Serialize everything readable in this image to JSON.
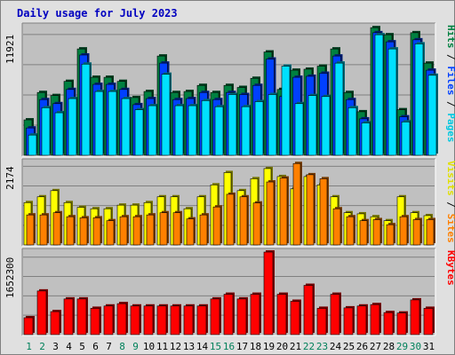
{
  "title": "Daily usage for July 2023",
  "chart_data": [
    {
      "type": "bar",
      "title": "Daily usage for July 2023",
      "categories": [
        "1",
        "2",
        "3",
        "4",
        "5",
        "6",
        "7",
        "8",
        "9",
        "10",
        "11",
        "12",
        "13",
        "14",
        "15",
        "16",
        "17",
        "18",
        "19",
        "20",
        "21",
        "22",
        "23",
        "24",
        "25",
        "26",
        "27",
        "28",
        "29",
        "30",
        "31"
      ],
      "weekend_days": [
        "1",
        "2",
        "8",
        "9",
        "15",
        "16",
        "22",
        "23",
        "29",
        "30"
      ],
      "y_tick": 11921,
      "ylim": [
        0,
        12700
      ],
      "axis_labels": [
        "Pages",
        "Files",
        "Hits"
      ],
      "series": [
        {
          "name": "Hits",
          "color": "#008040",
          "values": [
            3500,
            6200,
            5900,
            7300,
            10500,
            7700,
            7700,
            7300,
            5700,
            6300,
            9800,
            6200,
            6300,
            6900,
            6200,
            6900,
            6700,
            7600,
            10200,
            6500,
            8400,
            8500,
            8800,
            10500,
            6200,
            4300,
            12600,
            11900,
            4500,
            12100,
            9100
          ]
        },
        {
          "name": "Files",
          "color": "#0040ff",
          "values": [
            2700,
            5500,
            5100,
            6500,
            9900,
            7000,
            7000,
            6500,
            5000,
            5600,
            9100,
            5500,
            5600,
            6200,
            5500,
            6200,
            6000,
            6900,
            9500,
            5800,
            7700,
            7800,
            8100,
            9800,
            5500,
            3600,
            12100,
            11200,
            3800,
            11400,
            8400
          ]
        },
        {
          "name": "Pages",
          "color": "#00e0ff",
          "values": [
            2000,
            4700,
            4200,
            5600,
            9000,
            6300,
            6300,
            5600,
            4500,
            4900,
            8000,
            4900,
            4900,
            5400,
            4800,
            6000,
            4800,
            5300,
            6000,
            8800,
            5100,
            5900,
            5800,
            9100,
            4700,
            3200,
            11900,
            10500,
            3300,
            11000,
            7900
          ]
        }
      ]
    },
    {
      "type": "bar",
      "categories": [
        "1",
        "2",
        "3",
        "4",
        "5",
        "6",
        "7",
        "8",
        "9",
        "10",
        "11",
        "12",
        "13",
        "14",
        "15",
        "16",
        "17",
        "18",
        "19",
        "20",
        "21",
        "22",
        "23",
        "24",
        "25",
        "26",
        "27",
        "28",
        "29",
        "30",
        "31"
      ],
      "y_tick": 2174,
      "ylim": [
        0,
        2280
      ],
      "axis_labels": [
        "Sites",
        "Visits"
      ],
      "series": [
        {
          "name": "Visits",
          "color": "#ffff00",
          "values": [
            1170,
            1330,
            1500,
            1170,
            1040,
            1000,
            1000,
            1100,
            1100,
            1170,
            1330,
            1330,
            1000,
            1330,
            1660,
            2000,
            1500,
            1830,
            2110,
            1890,
            1550,
            1890,
            1660,
            1330,
            890,
            860,
            780,
            670,
            1330,
            890,
            810
          ]
        },
        {
          "name": "Sites",
          "color": "#ff8000",
          "values": [
            830,
            830,
            890,
            780,
            750,
            750,
            670,
            780,
            780,
            830,
            890,
            890,
            720,
            830,
            1050,
            1400,
            1330,
            1160,
            1740,
            1850,
            2250,
            1940,
            1830,
            1000,
            780,
            670,
            700,
            560,
            780,
            700,
            700
          ]
        }
      ]
    },
    {
      "type": "bar",
      "categories": [
        "1",
        "2",
        "3",
        "4",
        "5",
        "6",
        "7",
        "8",
        "9",
        "10",
        "11",
        "12",
        "13",
        "14",
        "15",
        "16",
        "17",
        "18",
        "19",
        "20",
        "21",
        "22",
        "23",
        "24",
        "25",
        "26",
        "27",
        "28",
        "29",
        "30",
        "31"
      ],
      "y_tick": 1652300,
      "ylim": [
        0,
        1760000
      ],
      "axis_labels": [
        "KBytes"
      ],
      "series": [
        {
          "name": "KBytes",
          "color": "#ff0000",
          "values": [
            360000,
            930000,
            490000,
            760000,
            760000,
            560000,
            610000,
            660000,
            610000,
            610000,
            610000,
            610000,
            610000,
            610000,
            760000,
            860000,
            760000,
            860000,
            1760000,
            860000,
            710000,
            1050000,
            560000,
            860000,
            570000,
            610000,
            640000,
            470000,
            460000,
            740000,
            560000
          ]
        }
      ]
    }
  ]
}
